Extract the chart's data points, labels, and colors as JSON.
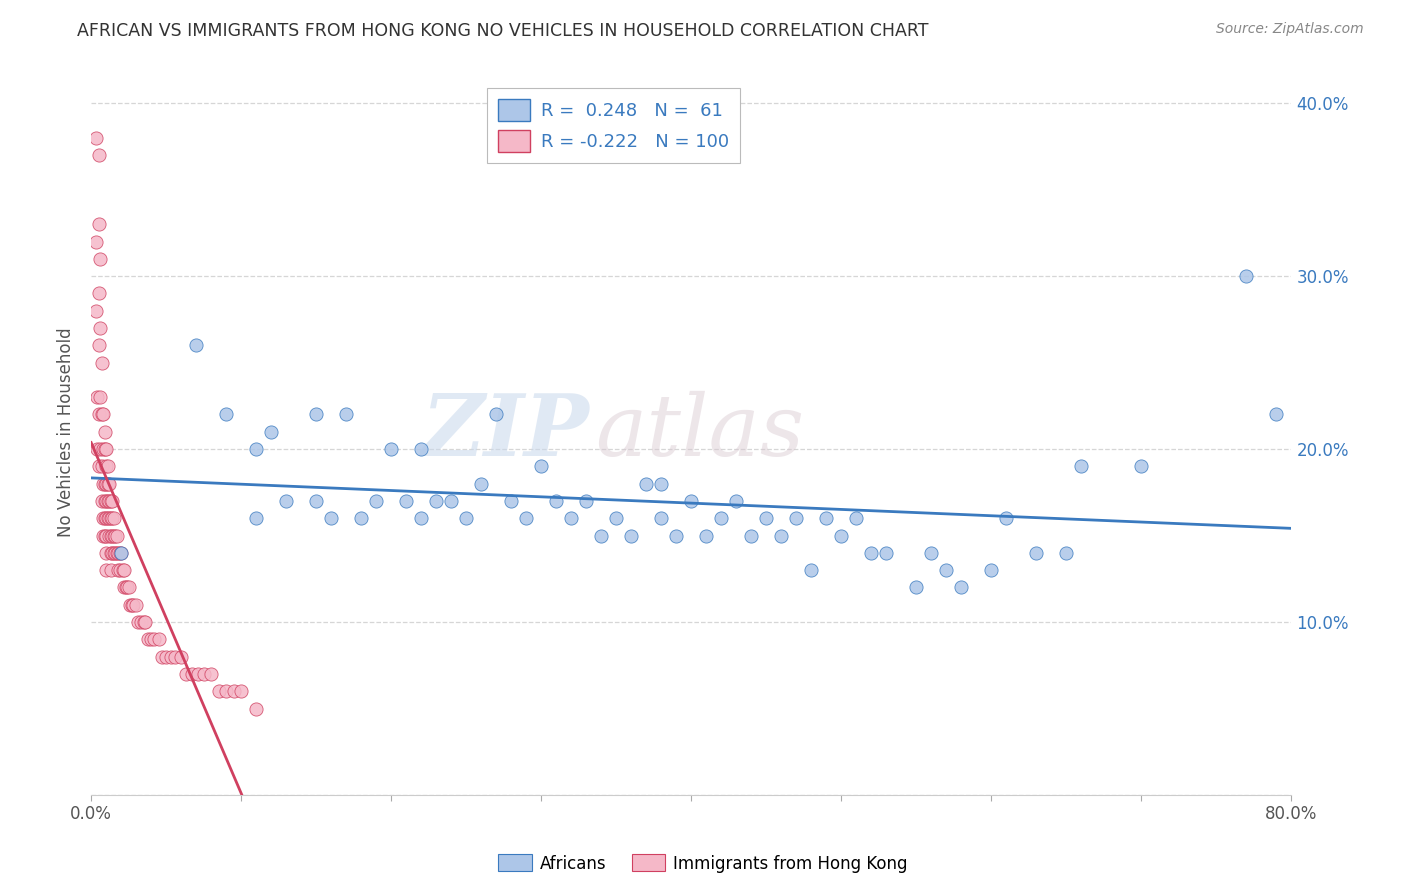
{
  "title": "AFRICAN VS IMMIGRANTS FROM HONG KONG NO VEHICLES IN HOUSEHOLD CORRELATION CHART",
  "source": "Source: ZipAtlas.com",
  "ylabel": "No Vehicles in Household",
  "r_african": 0.248,
  "n_african": 61,
  "r_hk": -0.222,
  "n_hk": 100,
  "color_african": "#adc6e8",
  "color_hk": "#f5b8c8",
  "line_color_african": "#3a7abf",
  "line_color_hk": "#d04060",
  "background_color": "#ffffff",
  "grid_color": "#cccccc",
  "watermark_zip": "ZIP",
  "watermark_atlas": "atlas",
  "xlim": [
    0.0,
    0.8
  ],
  "ylim": [
    0.0,
    0.42
  ],
  "african_x": [
    0.02,
    0.07,
    0.09,
    0.11,
    0.11,
    0.12,
    0.13,
    0.15,
    0.15,
    0.16,
    0.17,
    0.18,
    0.19,
    0.2,
    0.21,
    0.22,
    0.22,
    0.23,
    0.24,
    0.25,
    0.26,
    0.27,
    0.28,
    0.29,
    0.3,
    0.31,
    0.32,
    0.33,
    0.34,
    0.35,
    0.36,
    0.37,
    0.38,
    0.38,
    0.39,
    0.4,
    0.41,
    0.42,
    0.43,
    0.44,
    0.45,
    0.46,
    0.47,
    0.48,
    0.49,
    0.5,
    0.51,
    0.52,
    0.53,
    0.55,
    0.56,
    0.57,
    0.58,
    0.6,
    0.61,
    0.63,
    0.65,
    0.66,
    0.7,
    0.77,
    0.79
  ],
  "african_y": [
    0.14,
    0.26,
    0.22,
    0.2,
    0.16,
    0.21,
    0.17,
    0.22,
    0.17,
    0.16,
    0.22,
    0.16,
    0.17,
    0.2,
    0.17,
    0.2,
    0.16,
    0.17,
    0.17,
    0.16,
    0.18,
    0.22,
    0.17,
    0.16,
    0.19,
    0.17,
    0.16,
    0.17,
    0.15,
    0.16,
    0.15,
    0.18,
    0.16,
    0.18,
    0.15,
    0.17,
    0.15,
    0.16,
    0.17,
    0.15,
    0.16,
    0.15,
    0.16,
    0.13,
    0.16,
    0.15,
    0.16,
    0.14,
    0.14,
    0.12,
    0.14,
    0.13,
    0.12,
    0.13,
    0.16,
    0.14,
    0.14,
    0.19,
    0.19,
    0.3,
    0.22
  ],
  "hk_x": [
    0.003,
    0.003,
    0.003,
    0.004,
    0.004,
    0.005,
    0.005,
    0.005,
    0.005,
    0.005,
    0.005,
    0.006,
    0.006,
    0.006,
    0.006,
    0.007,
    0.007,
    0.007,
    0.007,
    0.008,
    0.008,
    0.008,
    0.008,
    0.008,
    0.009,
    0.009,
    0.009,
    0.009,
    0.009,
    0.009,
    0.01,
    0.01,
    0.01,
    0.01,
    0.01,
    0.01,
    0.01,
    0.01,
    0.011,
    0.011,
    0.011,
    0.011,
    0.012,
    0.012,
    0.012,
    0.012,
    0.013,
    0.013,
    0.013,
    0.013,
    0.013,
    0.014,
    0.014,
    0.014,
    0.014,
    0.015,
    0.015,
    0.015,
    0.016,
    0.016,
    0.017,
    0.017,
    0.018,
    0.018,
    0.019,
    0.019,
    0.02,
    0.021,
    0.022,
    0.022,
    0.023,
    0.024,
    0.025,
    0.026,
    0.027,
    0.028,
    0.03,
    0.031,
    0.033,
    0.035,
    0.036,
    0.038,
    0.04,
    0.042,
    0.045,
    0.047,
    0.05,
    0.053,
    0.056,
    0.06,
    0.063,
    0.067,
    0.071,
    0.075,
    0.08,
    0.085,
    0.09,
    0.095,
    0.1,
    0.11
  ],
  "hk_y": [
    0.38,
    0.32,
    0.28,
    0.23,
    0.2,
    0.37,
    0.33,
    0.29,
    0.26,
    0.22,
    0.19,
    0.31,
    0.27,
    0.23,
    0.2,
    0.25,
    0.22,
    0.19,
    0.17,
    0.22,
    0.2,
    0.18,
    0.16,
    0.15,
    0.21,
    0.2,
    0.18,
    0.17,
    0.16,
    0.15,
    0.2,
    0.19,
    0.18,
    0.17,
    0.16,
    0.15,
    0.14,
    0.13,
    0.19,
    0.18,
    0.17,
    0.16,
    0.18,
    0.17,
    0.16,
    0.15,
    0.17,
    0.16,
    0.15,
    0.14,
    0.13,
    0.17,
    0.16,
    0.15,
    0.14,
    0.16,
    0.15,
    0.14,
    0.15,
    0.14,
    0.15,
    0.14,
    0.14,
    0.13,
    0.14,
    0.13,
    0.14,
    0.13,
    0.13,
    0.12,
    0.12,
    0.12,
    0.12,
    0.11,
    0.11,
    0.11,
    0.11,
    0.1,
    0.1,
    0.1,
    0.1,
    0.09,
    0.09,
    0.09,
    0.09,
    0.08,
    0.08,
    0.08,
    0.08,
    0.08,
    0.07,
    0.07,
    0.07,
    0.07,
    0.07,
    0.06,
    0.06,
    0.06,
    0.06,
    0.05
  ]
}
